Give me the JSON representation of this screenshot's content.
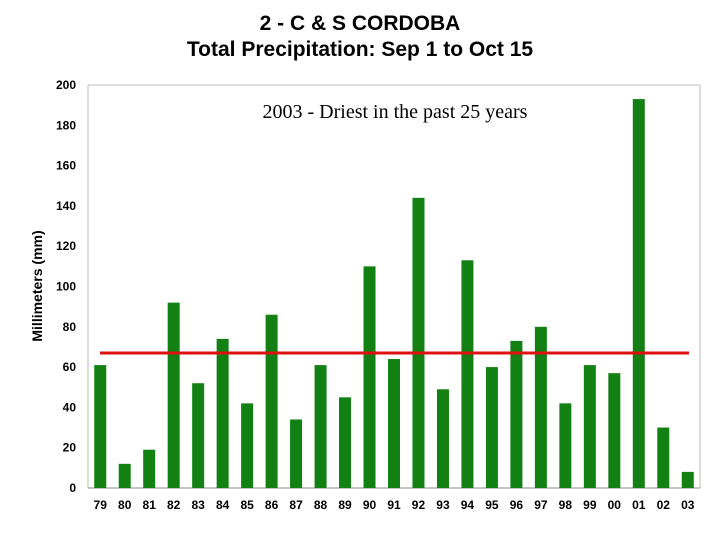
{
  "chart_data": {
    "type": "bar",
    "title": "2 - C & S CORDOBA",
    "subtitle": "Total Precipitation: Sep 1 to Oct 15",
    "xlabel": "",
    "ylabel": "Millimeters (mm)",
    "annotation": "2003 - Driest in the past 25 years",
    "categories": [
      "79",
      "80",
      "81",
      "82",
      "83",
      "84",
      "85",
      "86",
      "87",
      "88",
      "89",
      "90",
      "91",
      "92",
      "93",
      "94",
      "95",
      "96",
      "97",
      "98",
      "99",
      "00",
      "01",
      "02",
      "03"
    ],
    "values": [
      61,
      12,
      19,
      92,
      52,
      74,
      42,
      86,
      34,
      61,
      45,
      110,
      64,
      144,
      49,
      113,
      60,
      73,
      80,
      42,
      61,
      57,
      193,
      30,
      8
    ],
    "reference_line": 67,
    "ylim": [
      0,
      200
    ],
    "yticks": [
      0,
      20,
      40,
      60,
      80,
      100,
      120,
      140,
      160,
      180,
      200
    ],
    "grid": false,
    "bar_color": "#128012",
    "reference_line_color": "#dd1111"
  }
}
